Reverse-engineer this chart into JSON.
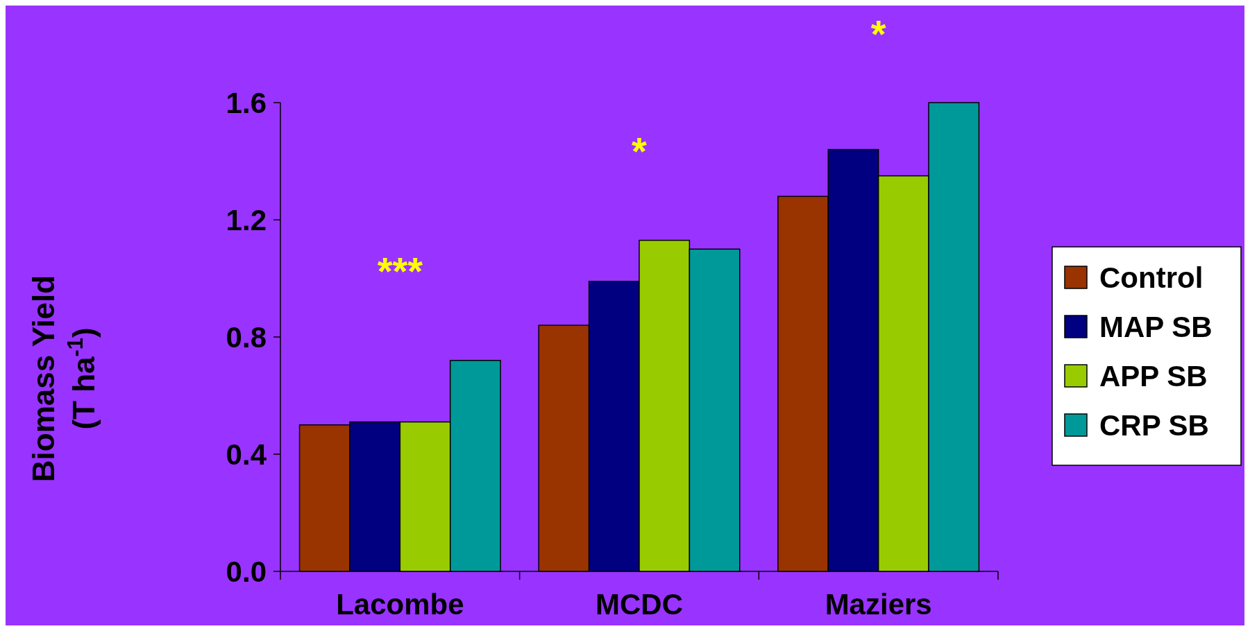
{
  "chart_data": {
    "type": "bar",
    "ylabel": "Biomass Yield\n(T ha$^{-1}$)",
    "categories": [
      "Lacombe",
      "MCDC",
      "Maziers"
    ],
    "series": [
      {
        "name": "Control",
        "color": "#993300",
        "values": [
          0.5,
          0.84,
          1.28
        ]
      },
      {
        "name": "MAP SB",
        "color": "#000080",
        "values": [
          0.51,
          0.99,
          1.44
        ]
      },
      {
        "name": "APP SB",
        "color": "#99cc00",
        "values": [
          0.51,
          1.13,
          1.35
        ]
      },
      {
        "name": "CRP SB",
        "color": "#009999",
        "values": [
          0.72,
          1.1,
          1.6
        ]
      }
    ],
    "ylim": [
      0,
      1.6
    ],
    "yticks": [
      "0.0",
      0.4,
      0.8,
      1.2,
      1.6
    ],
    "legend": "right",
    "grid": false,
    "annotations": [
      "***",
      "*",
      "*"
    ]
  }
}
